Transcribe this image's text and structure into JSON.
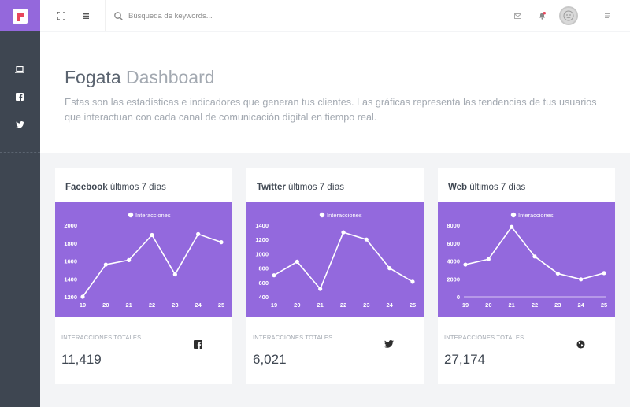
{
  "sidebar": {
    "logo_icon": "fogata-logo-icon",
    "items": [
      {
        "icon": "laptop-icon",
        "name": "sidebar-item-dashboard"
      },
      {
        "icon": "facebook-icon",
        "name": "sidebar-item-facebook"
      },
      {
        "icon": "twitter-icon",
        "name": "sidebar-item-twitter"
      }
    ]
  },
  "topbar": {
    "fullscreen_icon": "expand-icon",
    "menu_icon": "hamburger-icon",
    "search_placeholder": "Búsqueda de keywords...",
    "mail_icon": "envelope-icon",
    "notifications_icon": "bell-icon",
    "avatar_icon": "user-avatar-icon",
    "options_icon": "list-icon"
  },
  "header": {
    "title_bold": "Fogata",
    "title_light": "Dashboard",
    "description": "Estas son las estadísticas e indicadores que generan tus clientes. Las gráficas representa las tendencias de tus usuarios que interactuan con cada canal de comunicación digital en tiempo real."
  },
  "colors": {
    "accent": "#9468dc",
    "chart_bg": "#9369dd",
    "sidebar": "#3e4651"
  },
  "cards": [
    {
      "title_bold": "Facebook",
      "title_rest": "últimos 7 días",
      "stat_label": "INTERACCIONES TOTALES",
      "stat_value": "11,419",
      "icon": "facebook-icon"
    },
    {
      "title_bold": "Twitter",
      "title_rest": "últimos 7 días",
      "stat_label": "INTERACCIONES TOTALES",
      "stat_value": "6,021",
      "icon": "twitter-icon"
    },
    {
      "title_bold": "Web",
      "title_rest": "últimos 7 días",
      "stat_label": "INTERACCIONES TOTALES",
      "stat_value": "27,174",
      "icon": "globe-icon"
    }
  ],
  "chart_data": [
    {
      "type": "line",
      "legend": "Interacciones",
      "x": [
        "19",
        "20",
        "21",
        "22",
        "23",
        "24",
        "25"
      ],
      "y_ticks": [
        "1200",
        "1400",
        "1600",
        "1800",
        "2000"
      ],
      "ylim": [
        1200,
        2000
      ],
      "series": [
        {
          "name": "Interacciones",
          "values": [
            1200,
            1560,
            1610,
            1890,
            1450,
            1900,
            1810
          ]
        }
      ],
      "zero_line": false
    },
    {
      "type": "line",
      "legend": "Interacciones",
      "x": [
        "19",
        "20",
        "21",
        "22",
        "23",
        "24",
        "25"
      ],
      "y_ticks": [
        "400",
        "600",
        "800",
        "1000",
        "1200",
        "1400"
      ],
      "ylim": [
        400,
        1400
      ],
      "series": [
        {
          "name": "Interacciones",
          "values": [
            700,
            890,
            510,
            1300,
            1200,
            800,
            610
          ]
        }
      ],
      "zero_line": false
    },
    {
      "type": "line",
      "legend": "Interacciones",
      "x": [
        "19",
        "20",
        "21",
        "22",
        "23",
        "24",
        "25"
      ],
      "y_ticks": [
        "0",
        "2000",
        "4000",
        "6000",
        "8000"
      ],
      "ylim": [
        0,
        8000
      ],
      "series": [
        {
          "name": "Interacciones",
          "values": [
            3600,
            4200,
            7800,
            4500,
            2600,
            1950,
            2650
          ]
        }
      ],
      "zero_line": true
    }
  ]
}
